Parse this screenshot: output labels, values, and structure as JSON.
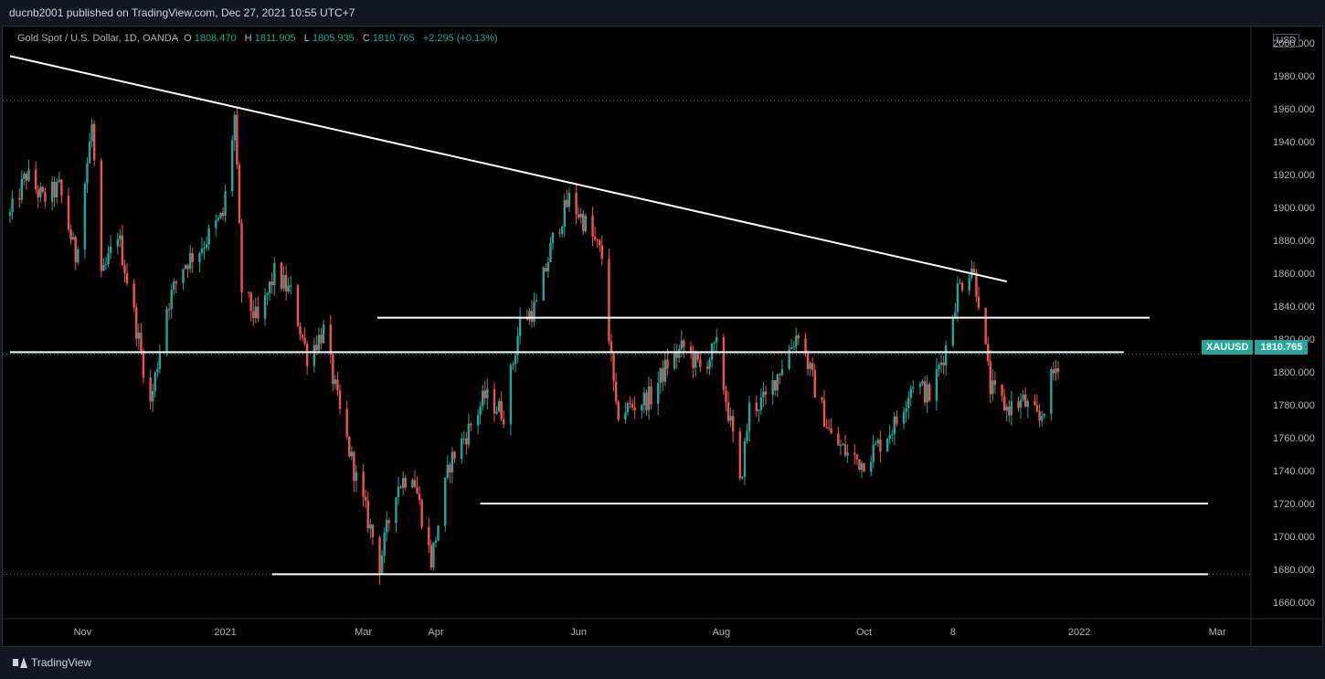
{
  "header": {
    "published_text": "ducnb2001 published on TradingView.com, Dec 27, 2021 10:55 UTC+7"
  },
  "legend": {
    "title": "Gold Spot / U.S. Dollar, 1D, OANDA",
    "open_label": "O",
    "open": "1808.470",
    "high_label": "H",
    "high": "1811.905",
    "low_label": "L",
    "low": "1805.935",
    "close_label": "C",
    "close": "1810.765",
    "change": "+2.295 (+0.13%)"
  },
  "price_tag": {
    "symbol": "XAUUSD",
    "price": "1810.765"
  },
  "footer": {
    "brand": "TradingView"
  },
  "colors": {
    "up": "#26a69a",
    "down": "#ef5350",
    "background": "#000000",
    "lines": "#ffffff",
    "grid_dotted": "#787b86"
  },
  "chart_data": {
    "type": "candlestick",
    "unit": "USD",
    "ylim": [
      1650,
      2010
    ],
    "y_ticks": [
      "2000.000",
      "1980.000",
      "1960.000",
      "1940.000",
      "1920.000",
      "1900.000",
      "1880.000",
      "1860.000",
      "1840.000",
      "1820.000",
      "1800.000",
      "1780.000",
      "1760.000",
      "1740.000",
      "1720.000",
      "1700.000",
      "1680.000",
      "1660.000"
    ],
    "x_ticks": [
      {
        "label": "Nov",
        "date": "2020-11-01"
      },
      {
        "label": "2021",
        "date": "2021-01-01"
      },
      {
        "label": "Mar",
        "date": "2021-03-01"
      },
      {
        "label": "Apr",
        "date": "2021-04-01"
      },
      {
        "label": "Jun",
        "date": "2021-06-01"
      },
      {
        "label": "Aug",
        "date": "2021-08-01"
      },
      {
        "label": "Oct",
        "date": "2021-10-01"
      },
      {
        "label": "8",
        "date": "2021-11-08"
      },
      {
        "label": "2022",
        "date": "2022-01-01"
      },
      {
        "label": "Mar",
        "date": "2022-03-01"
      }
    ],
    "price_path": [
      [
        "2020-10-01",
        1895
      ],
      [
        "2020-10-08",
        1920
      ],
      [
        "2020-10-15",
        1905
      ],
      [
        "2020-10-22",
        1912
      ],
      [
        "2020-10-29",
        1870
      ],
      [
        "2020-11-05",
        1950
      ],
      [
        "2020-11-09",
        1855
      ],
      [
        "2020-11-16",
        1885
      ],
      [
        "2020-11-23",
        1835
      ],
      [
        "2020-11-30",
        1780
      ],
      [
        "2020-12-07",
        1840
      ],
      [
        "2020-12-14",
        1865
      ],
      [
        "2020-12-21",
        1875
      ],
      [
        "2020-12-31",
        1895
      ],
      [
        "2021-01-05",
        1955
      ],
      [
        "2021-01-08",
        1850
      ],
      [
        "2021-01-15",
        1830
      ],
      [
        "2021-01-22",
        1860
      ],
      [
        "2021-01-29",
        1848
      ],
      [
        "2021-02-05",
        1810
      ],
      [
        "2021-02-12",
        1825
      ],
      [
        "2021-02-19",
        1775
      ],
      [
        "2021-02-26",
        1735
      ],
      [
        "2021-03-05",
        1700
      ],
      [
        "2021-03-08",
        1683
      ],
      [
        "2021-03-15",
        1730
      ],
      [
        "2021-03-22",
        1740
      ],
      [
        "2021-03-30",
        1685
      ],
      [
        "2021-04-07",
        1745
      ],
      [
        "2021-04-15",
        1765
      ],
      [
        "2021-04-22",
        1785
      ],
      [
        "2021-04-30",
        1775
      ],
      [
        "2021-05-07",
        1830
      ],
      [
        "2021-05-14",
        1840
      ],
      [
        "2021-05-21",
        1880
      ],
      [
        "2021-05-28",
        1905
      ],
      [
        "2021-06-04",
        1890
      ],
      [
        "2021-06-11",
        1870
      ],
      [
        "2021-06-17",
        1775
      ],
      [
        "2021-06-25",
        1780
      ],
      [
        "2021-07-02",
        1785
      ],
      [
        "2021-07-09",
        1805
      ],
      [
        "2021-07-16",
        1815
      ],
      [
        "2021-07-23",
        1802
      ],
      [
        "2021-07-30",
        1815
      ],
      [
        "2021-08-06",
        1760
      ],
      [
        "2021-08-09",
        1730
      ],
      [
        "2021-08-13",
        1778
      ],
      [
        "2021-08-20",
        1783
      ],
      [
        "2021-08-27",
        1805
      ],
      [
        "2021-09-03",
        1825
      ],
      [
        "2021-09-10",
        1790
      ],
      [
        "2021-09-17",
        1760
      ],
      [
        "2021-09-24",
        1750
      ],
      [
        "2021-09-30",
        1745
      ],
      [
        "2021-10-08",
        1757
      ],
      [
        "2021-10-15",
        1770
      ],
      [
        "2021-10-22",
        1795
      ],
      [
        "2021-10-29",
        1785
      ],
      [
        "2021-11-05",
        1815
      ],
      [
        "2021-11-10",
        1850
      ],
      [
        "2021-11-16",
        1865
      ],
      [
        "2021-11-19",
        1845
      ],
      [
        "2021-11-24",
        1790
      ],
      [
        "2021-12-01",
        1778
      ],
      [
        "2021-12-08",
        1782
      ],
      [
        "2021-12-15",
        1770
      ],
      [
        "2021-12-20",
        1795
      ],
      [
        "2021-12-24",
        1810
      ]
    ],
    "drawings": [
      {
        "name": "descending-trendline",
        "from": [
          "2020-10-01",
          1992
        ],
        "to": [
          "2021-12-01",
          1855
        ]
      },
      {
        "name": "resistance-1833",
        "from": [
          "2021-03-07",
          1833
        ],
        "to": [
          "2022-01-31",
          1833
        ]
      },
      {
        "name": "current-level-1812",
        "from": [
          "2020-10-01",
          1812
        ],
        "to": [
          "2022-01-20",
          1812
        ]
      },
      {
        "name": "support-1720",
        "from": [
          "2021-04-20",
          1720
        ],
        "to": [
          "2022-02-25",
          1720
        ]
      },
      {
        "name": "support-1677",
        "from": [
          "2021-01-21",
          1677
        ],
        "to": [
          "2022-02-25",
          1677
        ]
      }
    ],
    "dotted_levels": [
      1965,
      1677
    ]
  }
}
